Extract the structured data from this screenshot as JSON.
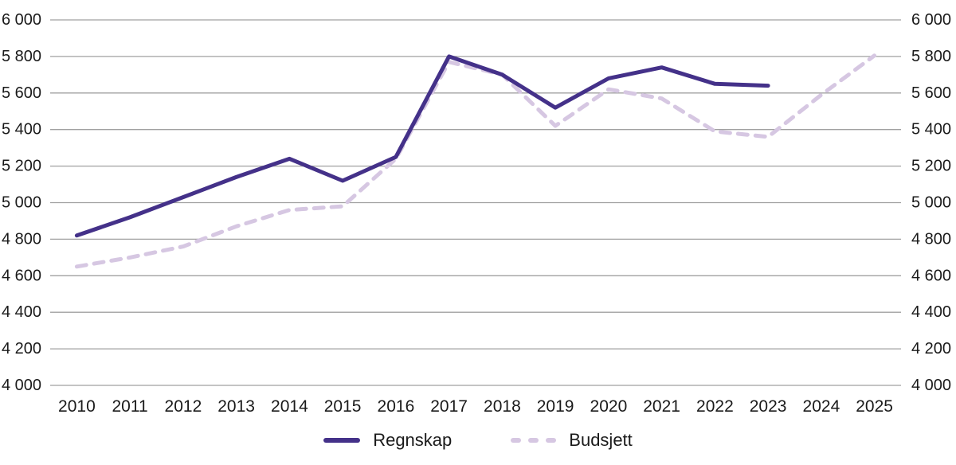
{
  "chart_data": {
    "type": "line",
    "title": "",
    "categories": [
      "2010",
      "2011",
      "2012",
      "2013",
      "2014",
      "2015",
      "2016",
      "2017",
      "2018",
      "2019",
      "2020",
      "2021",
      "2022",
      "2023",
      "2024",
      "2025"
    ],
    "series": [
      {
        "name": "Regnskap",
        "style": "solid",
        "color": "#443189",
        "values": [
          4820,
          4920,
          5030,
          5140,
          5240,
          5120,
          5250,
          5800,
          5700,
          5520,
          5680,
          5740,
          5650,
          5640
        ]
      },
      {
        "name": "Budsjett",
        "style": "dashed",
        "color": "#D6C7E2",
        "values": [
          4650,
          4700,
          4760,
          4870,
          4960,
          4980,
          5240,
          5770,
          5700,
          5420,
          5620,
          5570,
          5390,
          5360,
          5590,
          5805
        ]
      }
    ],
    "y_axis": {
      "min": 4000,
      "max": 6000,
      "step": 200,
      "tick_labels": [
        "4 000",
        "4 200",
        "4 400",
        "4 600",
        "4 800",
        "5 000",
        "5 200",
        "5 400",
        "5 600",
        "5 800",
        "6 000"
      ],
      "sides": [
        "left",
        "right"
      ]
    },
    "x_axis": {
      "label": ""
    },
    "grid": true,
    "legend_position": "bottom",
    "gridline_color": "#A0A0A0",
    "text_color": "#1A1A1A"
  }
}
